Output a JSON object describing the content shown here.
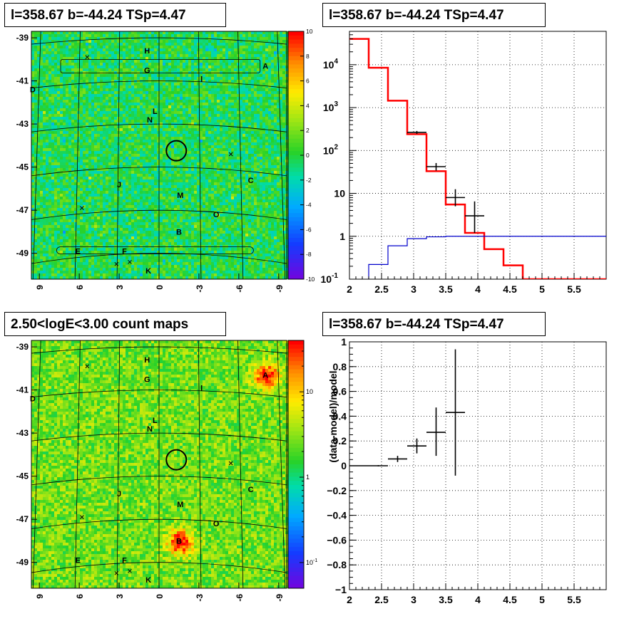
{
  "panels": {
    "tl_title": "l=358.67 b=-44.24 TSp=4.47",
    "tr_title": "l=358.67 b=-44.24 TSp=4.47",
    "bl_title": "2.50<logE<3.00 count maps",
    "br_title": "l=358.67 b=-44.24 TSp=4.47"
  },
  "colors": {
    "model_line": "#ff0000",
    "background_line": "#0000cc",
    "data_points": "#000000",
    "map_base": "#22cc22"
  },
  "chart_data": [
    {
      "type": "heatmap",
      "panel": "tl",
      "description_units": "galactic coordinates",
      "x_ticks": [
        "9",
        "6",
        "3",
        "0",
        "-3",
        "-6",
        "-9"
      ],
      "x_tick_values": [
        9,
        6,
        3,
        0,
        -3,
        -6,
        -9
      ],
      "y_ticks": [
        "-39",
        "-41",
        "-43",
        "-45",
        "-47",
        "-49"
      ],
      "y_tick_values": [
        -39,
        -41,
        -43,
        -45,
        -47,
        -49
      ],
      "colorbar_ticks": [
        "10",
        "8",
        "6",
        "4",
        "2",
        "0",
        "-2",
        "-4",
        "-6",
        "-8",
        "-10"
      ],
      "colorbar_values": [
        10,
        8,
        6,
        4,
        2,
        0,
        -2,
        -4,
        -6,
        -8,
        -10
      ],
      "sources": [
        {
          "label": "H",
          "l": 0.9,
          "b": -39.6
        },
        {
          "label": "G",
          "l": 0.9,
          "b": -40.5
        },
        {
          "label": "A",
          "l": -8.0,
          "b": -40.3
        },
        {
          "label": "D",
          "l": 9.5,
          "b": -41.4
        },
        {
          "label": "I",
          "l": -3.2,
          "b": -40.9
        },
        {
          "label": "L",
          "l": 0.3,
          "b": -42.4
        },
        {
          "label": "N",
          "l": 0.7,
          "b": -42.8
        },
        {
          "label": "J",
          "l": 3.0,
          "b": -45.8
        },
        {
          "label": "C",
          "l": -6.9,
          "b": -45.6
        },
        {
          "label": "M",
          "l": -1.6,
          "b": -46.3
        },
        {
          "label": "O",
          "l": -4.3,
          "b": -47.2
        },
        {
          "label": "B",
          "l": -1.5,
          "b": -48.0
        },
        {
          "label": "E",
          "l": 6.1,
          "b": -48.9
        },
        {
          "label": "F",
          "l": 2.6,
          "b": -48.9
        },
        {
          "label": "K",
          "l": 0.8,
          "b": -49.8
        }
      ],
      "crosses": [
        {
          "l": 5.4,
          "b": -39.9
        },
        {
          "l": -5.4,
          "b": -44.4
        },
        {
          "l": 5.8,
          "b": -46.9
        },
        {
          "l": 3.2,
          "b": -49.5
        },
        {
          "l": 2.2,
          "b": -49.4
        }
      ],
      "roi_circle": {
        "l": -1.3,
        "b": -44.24
      }
    },
    {
      "type": "line",
      "panel": "tr",
      "x_ticks": [
        "2",
        "2.5",
        "3",
        "3.5",
        "4",
        "4.5",
        "5",
        "5.5"
      ],
      "x_tick_values": [
        2,
        2.5,
        3,
        3.5,
        4,
        4.5,
        5,
        5.5
      ],
      "xlim": [
        2,
        6
      ],
      "y_scale": "log",
      "ylim": [
        0.1,
        60000
      ],
      "y_ticks": [
        {
          "value": 10000,
          "base": "10",
          "exp": "4"
        },
        {
          "value": 1000,
          "base": "10",
          "exp": "3"
        },
        {
          "value": 100,
          "base": "10",
          "exp": "2"
        },
        {
          "value": 10,
          "base": "10",
          "exp": ""
        },
        {
          "value": 1,
          "base": "1",
          "exp": ""
        },
        {
          "value": 0.1,
          "base": "10",
          "exp": "-1"
        }
      ],
      "grid": true,
      "series": [
        {
          "kind": "step",
          "color": "#ff0000",
          "edges": [
            2.0,
            2.3,
            2.6,
            2.9,
            3.2,
            3.5,
            3.8,
            4.1,
            4.4,
            4.7,
            5.0,
            6.0
          ],
          "values": [
            40000,
            8500,
            1450,
            240,
            33,
            5.5,
            1.2,
            0.5,
            0.21,
            0.1,
            0.1
          ]
        },
        {
          "kind": "step",
          "color": "#0000cc",
          "edges": [
            2.0,
            2.3,
            2.6,
            2.9,
            3.2,
            3.5,
            6.0
          ],
          "values": [
            0.05,
            0.22,
            0.6,
            0.88,
            0.97,
            1.0
          ]
        },
        {
          "kind": "errorbar",
          "color": "#000000",
          "points": [
            {
              "x": 3.05,
              "y": 265,
              "xerr": 0.15,
              "ylo": 245,
              "yhi": 285
            },
            {
              "x": 3.35,
              "y": 42,
              "xerr": 0.15,
              "ylo": 34,
              "yhi": 51
            },
            {
              "x": 3.65,
              "y": 8,
              "xerr": 0.15,
              "ylo": 5,
              "yhi": 12.5
            },
            {
              "x": 3.95,
              "y": 3,
              "xerr": 0.15,
              "ylo": 1.2,
              "yhi": 6.5
            }
          ]
        }
      ]
    },
    {
      "type": "heatmap",
      "panel": "bl",
      "x_ticks": [
        "9",
        "6",
        "3",
        "0",
        "-3",
        "-6",
        "-9"
      ],
      "x_tick_values": [
        9,
        6,
        3,
        0,
        -3,
        -6,
        -9
      ],
      "y_ticks": [
        "-39",
        "-41",
        "-43",
        "-45",
        "-47",
        "-49"
      ],
      "y_tick_values": [
        -39,
        -41,
        -43,
        -45,
        -47,
        -49
      ],
      "colorbar_scale": "log",
      "colorbar_ticks": [
        {
          "value": 10,
          "base": "10",
          "exp": ""
        },
        {
          "value": 1,
          "base": "1",
          "exp": ""
        },
        {
          "value": 0.1,
          "base": "10",
          "exp": "-1"
        }
      ],
      "hotspots": [
        {
          "label": "A",
          "l": -8.0,
          "b": -40.3,
          "strength": 1.0
        },
        {
          "label": "B",
          "l": -1.5,
          "b": -48.0,
          "strength": 1.0
        }
      ]
    },
    {
      "type": "scatter",
      "panel": "br",
      "ylabel": "(data-model)/model",
      "x_ticks": [
        "2",
        "2.5",
        "3",
        "3.5",
        "4",
        "4.5",
        "5",
        "5.5"
      ],
      "x_tick_values": [
        2,
        2.5,
        3,
        3.5,
        4,
        4.5,
        5,
        5.5
      ],
      "xlim": [
        2,
        6
      ],
      "y_ticks": [
        "1",
        "0.8",
        "0.6",
        "0.4",
        "0.2",
        "0",
        "−0.2",
        "−0.4",
        "−0.6",
        "−0.8",
        "−1"
      ],
      "y_tick_values": [
        1,
        0.8,
        0.6,
        0.4,
        0.2,
        0,
        -0.2,
        -0.4,
        -0.6,
        -0.8,
        -1
      ],
      "ylim": [
        -1,
        1
      ],
      "grid": true,
      "points": [
        {
          "x": 2.15,
          "y": 0.0,
          "xerr": 0.15,
          "ylo": 0.0,
          "yhi": 0.0
        },
        {
          "x": 2.45,
          "y": 0.0,
          "xerr": 0.15,
          "ylo": -0.005,
          "yhi": 0.005
        },
        {
          "x": 2.75,
          "y": 0.055,
          "xerr": 0.15,
          "ylo": 0.03,
          "yhi": 0.08
        },
        {
          "x": 3.05,
          "y": 0.16,
          "xerr": 0.15,
          "ylo": 0.1,
          "yhi": 0.22
        },
        {
          "x": 3.35,
          "y": 0.27,
          "xerr": 0.15,
          "ylo": 0.08,
          "yhi": 0.47
        },
        {
          "x": 3.65,
          "y": 0.43,
          "xerr": 0.15,
          "ylo": -0.08,
          "yhi": 0.94
        }
      ]
    }
  ]
}
